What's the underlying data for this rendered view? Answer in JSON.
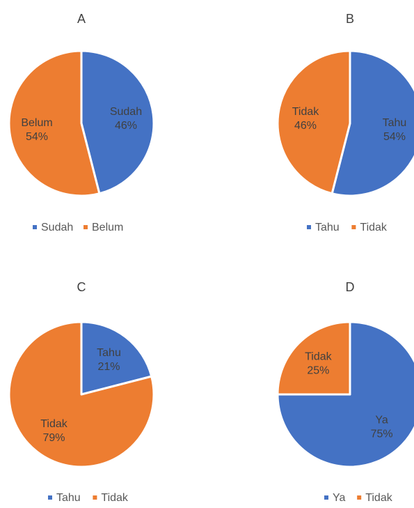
{
  "chart_data": [
    {
      "type": "pie",
      "title": "A",
      "categories": [
        "Sudah",
        "Belum"
      ],
      "values": [
        46,
        54
      ],
      "slice_labels": [
        "Sudah",
        "Belum"
      ],
      "percent_labels": [
        "46%",
        "54%"
      ],
      "colors": [
        "#4472C4",
        "#ED7D31"
      ],
      "legend": [
        "Sudah",
        "Belum"
      ],
      "legend_position": "bottom"
    },
    {
      "type": "pie",
      "title": "B",
      "categories": [
        "Tahu",
        "Tidak"
      ],
      "values": [
        54,
        46
      ],
      "slice_labels": [
        "Tahu",
        "Tidak"
      ],
      "percent_labels": [
        "54%",
        "46%"
      ],
      "colors": [
        "#4472C4",
        "#ED7D31"
      ],
      "legend": [
        "Tahu",
        "Tidak"
      ],
      "legend_position": "bottom"
    },
    {
      "type": "pie",
      "title": "C",
      "categories": [
        "Tahu",
        "Tidak"
      ],
      "values": [
        21,
        79
      ],
      "slice_labels": [
        "Tahu",
        "Tidak"
      ],
      "percent_labels": [
        "21%",
        "79%"
      ],
      "colors": [
        "#4472C4",
        "#ED7D31"
      ],
      "legend": [
        "Tahu",
        "Tidak"
      ],
      "legend_position": "bottom"
    },
    {
      "type": "pie",
      "title": "D",
      "categories": [
        "Ya",
        "Tidak"
      ],
      "values": [
        75,
        25
      ],
      "slice_labels": [
        "Ya",
        "Tidak"
      ],
      "percent_labels": [
        "75%",
        "25%"
      ],
      "colors": [
        "#4472C4",
        "#ED7D31"
      ],
      "legend": [
        "Ya",
        "Tidak"
      ],
      "legend_position": "bottom"
    }
  ]
}
